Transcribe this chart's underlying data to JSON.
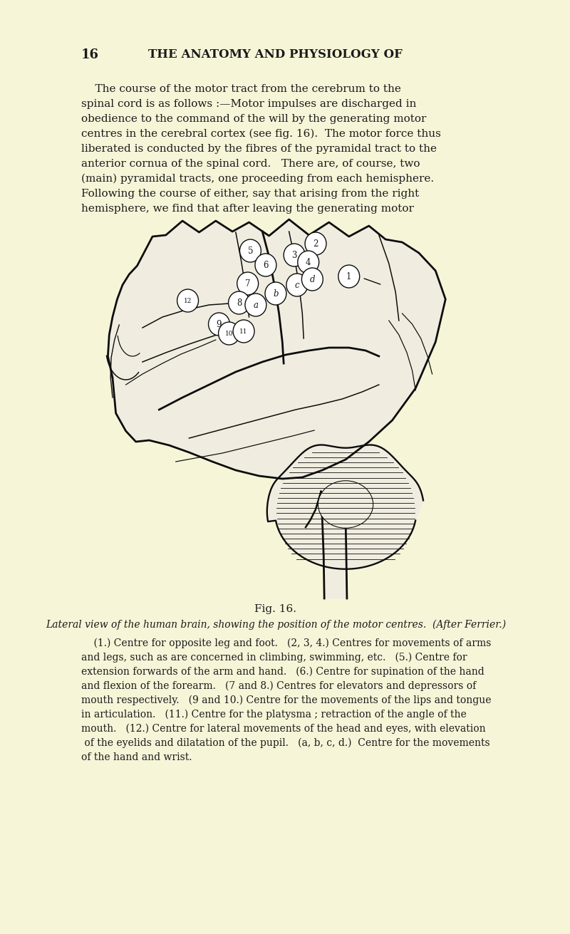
{
  "background_color": "#f7f5d8",
  "page_number": "16",
  "header": "THE ANATOMY AND PHYSIOLOGY OF",
  "body_text_lines": [
    "    The course of the motor tract from the cerebrum to the",
    "spinal cord is as follows :—Motor impulses are discharged in",
    "obedience to the command of the will by the generating motor",
    "centres in the cerebral cortex (see fig. 16).  The motor force thus",
    "liberated is conducted by the fibres of the pyramidal tract to the",
    "anterior cornua of the spinal cord.   There are, of course, two",
    "(main) pyramidal tracts, one proceeding from each hemisphere.",
    "Following the course of either, say that arising from the right",
    "hemisphere, we find that after leaving the generating motor"
  ],
  "fig_label": "Fig. 16.",
  "fig_italic": "Lateral view of the human brain, showing the position of the motor centres.  (After Ferrier.)",
  "caption_lines": [
    "    (1.) Centre for opposite leg and foot.   (2, 3, 4.) Centres for movements of arms",
    "and legs, such as are concerned in climbing, swimming, etc.   (5.) Centre for",
    "extension forwards of the arm and hand.   (6.) Centre for supination of the hand",
    "and flexion of the forearm.   (7 and 8.) Centres for elevators and depressors of",
    "mouth respectively.   (9 and 10.) Centre for the movements of the lips and tongue",
    "in articulation.   (11.) Centre for the platysma ; retraction of the angle of the",
    "mouth.   (12.) Centre for lateral movements of the head and eyes, with elevation",
    " of the eyelids and dilatation of the pupil.   (a, b, c, d.)  Centre for the movements",
    "of the hand and wrist."
  ],
  "text_color": "#1a1a1a",
  "header_fontsize": 12,
  "body_fontsize": 11,
  "caption_fontsize": 10
}
